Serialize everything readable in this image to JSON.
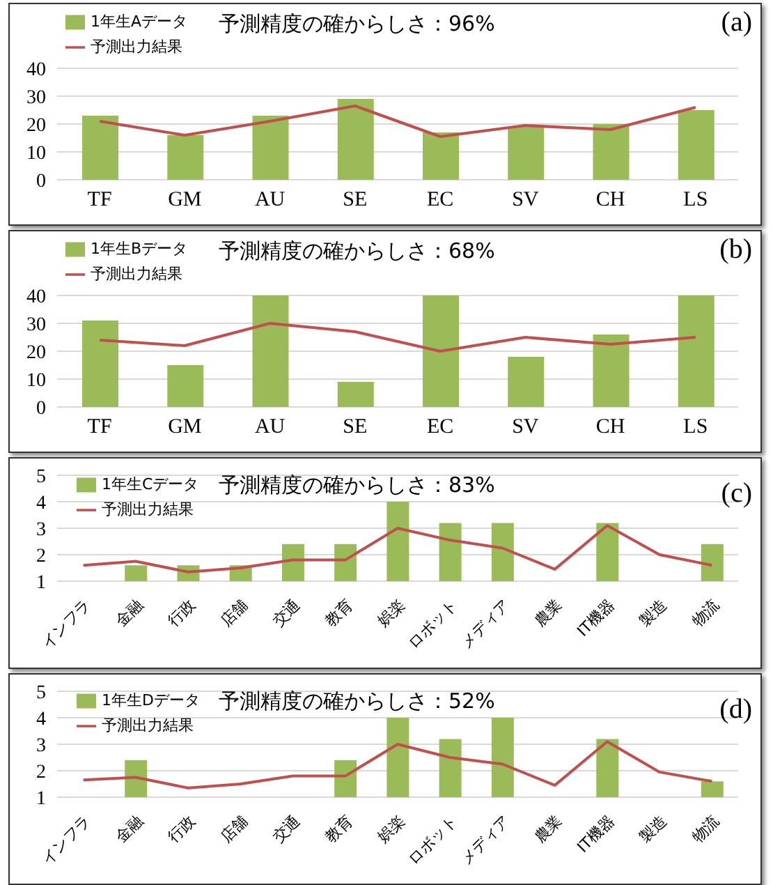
{
  "chart_data": [
    {
      "type": "bar",
      "title": "予測精度の確からしさ：96%",
      "annotations": [
        "(a)"
      ],
      "categories": [
        "TF",
        "GM",
        "AU",
        "SE",
        "EC",
        "SV",
        "CH",
        "LS"
      ],
      "series": [
        {
          "name": "1年生Aデータ",
          "color": "#9bbb59",
          "values": [
            23,
            16,
            23,
            29,
            17,
            19,
            20,
            25
          ]
        },
        {
          "name": "予測出力結果",
          "type": "line",
          "color": "#c0504d",
          "values": [
            21,
            16,
            21,
            26.5,
            15.5,
            19.5,
            18,
            26
          ]
        }
      ],
      "ylim": [
        0,
        40
      ],
      "yticks": [
        0,
        10,
        20,
        30,
        40
      ],
      "grid": "y",
      "legend": "top left"
    },
    {
      "type": "bar",
      "title": "予測精度の確からしさ：68%",
      "annotations": [
        "(b)"
      ],
      "categories": [
        "TF",
        "GM",
        "AU",
        "SE",
        "EC",
        "SV",
        "CH",
        "LS"
      ],
      "series": [
        {
          "name": "1年生Bデータ",
          "color": "#9bbb59",
          "values": [
            31,
            15,
            40,
            9,
            40,
            18,
            26,
            40
          ]
        },
        {
          "name": "予測出力結果",
          "type": "line",
          "color": "#c0504d",
          "values": [
            24,
            22,
            30,
            27,
            20,
            25,
            22.5,
            25
          ]
        }
      ],
      "ylim": [
        0,
        40
      ],
      "yticks": [
        0,
        10,
        20,
        30,
        40
      ],
      "grid": "y",
      "legend": "top left"
    },
    {
      "type": "bar",
      "title": "予測精度の確からしさ：83%",
      "annotations": [
        "(c)"
      ],
      "categories": [
        "インフラ",
        "金融",
        "行政",
        "店舗",
        "交通",
        "教育",
        "娯楽",
        "ロボット",
        "メディア",
        "農業",
        "IT機器",
        "製造",
        "物流"
      ],
      "series": [
        {
          "name": "1年生Cデータ",
          "color": "#9bbb59",
          "values": [
            null,
            1.6,
            1.6,
            1.6,
            2.4,
            2.4,
            4,
            3.2,
            3.2,
            null,
            3.2,
            null,
            2.4
          ]
        },
        {
          "name": "予測出力結果",
          "type": "line",
          "color": "#c0504d",
          "values": [
            1.6,
            1.75,
            1.35,
            1.5,
            1.8,
            1.8,
            3,
            2.55,
            2.25,
            1.45,
            3.1,
            2,
            1.6
          ]
        }
      ],
      "ylim": [
        1,
        5
      ],
      "yticks": [
        1,
        2,
        3,
        4,
        5
      ],
      "grid": "y",
      "legend": "top left"
    },
    {
      "type": "bar",
      "title": "予測精度の確からしさ：52%",
      "annotations": [
        "(d)"
      ],
      "categories": [
        "インフラ",
        "金融",
        "行政",
        "店舗",
        "交通",
        "教育",
        "娯楽",
        "ロボット",
        "メディア",
        "農業",
        "IT機器",
        "製造",
        "物流"
      ],
      "series": [
        {
          "name": "1年生Dデータ",
          "color": "#9bbb59",
          "values": [
            null,
            2.4,
            null,
            null,
            null,
            2.4,
            4,
            3.2,
            4,
            null,
            3.2,
            null,
            1.6
          ]
        },
        {
          "name": "予測出力結果",
          "type": "line",
          "color": "#c0504d",
          "values": [
            1.65,
            1.75,
            1.35,
            1.5,
            1.8,
            1.8,
            3,
            2.5,
            2.25,
            1.45,
            3.1,
            1.95,
            1.6
          ]
        }
      ],
      "ylim": [
        1,
        5
      ],
      "yticks": [
        1,
        2,
        3,
        4,
        5
      ],
      "grid": "y",
      "legend": "top left"
    }
  ]
}
